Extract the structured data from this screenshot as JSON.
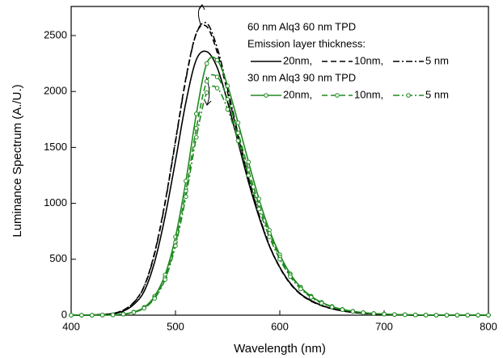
{
  "chart_data": {
    "type": "line",
    "xlabel": "Wavelength (nm)",
    "ylabel": "Luminance Spectrum (A./U.)",
    "annotations": [
      "60 nm Alq3 60 nm TPD",
      "Emission layer thickness:",
      "30 nm Alq3 90 nm TPD"
    ],
    "x": [
      400,
      410,
      420,
      430,
      440,
      450,
      460,
      470,
      480,
      490,
      500,
      510,
      520,
      530,
      540,
      550,
      560,
      570,
      580,
      590,
      600,
      610,
      620,
      630,
      640,
      650,
      660,
      670,
      680,
      690,
      700,
      710,
      720,
      730,
      740,
      750,
      760,
      770,
      780,
      790,
      800
    ],
    "xlim": [
      400,
      800
    ],
    "xticks": [
      400,
      500,
      600,
      700,
      800
    ],
    "ylim": [
      0,
      2760
    ],
    "yticks": [
      0,
      500,
      1000,
      1500,
      2000,
      2500
    ],
    "series": [
      {
        "name": "20nm,",
        "color": "#000000",
        "dash": "solid",
        "group": 0,
        "values": [
          0,
          0,
          2,
          5,
          12,
          36,
          95,
          214,
          476,
          881,
          1380,
          1904,
          2285,
          2356,
          2213,
          1904,
          1547,
          1190,
          881,
          619,
          428,
          286,
          190,
          131,
          88,
          60,
          40,
          26,
          17,
          12,
          7,
          5,
          2,
          0,
          0,
          0,
          0,
          0,
          0,
          0,
          0
        ]
      },
      {
        "name": "10nm,",
        "color": "#000000",
        "dash": "dashed",
        "group": 0,
        "values": [
          0,
          0,
          2,
          6,
          15,
          45,
          115,
          260,
          560,
          1010,
          1560,
          2120,
          2520,
          2580,
          2350,
          1990,
          1600,
          1220,
          890,
          620,
          425,
          280,
          185,
          125,
          85,
          57,
          38,
          25,
          16,
          11,
          7,
          4,
          2,
          0,
          0,
          0,
          0,
          0,
          0,
          0,
          0
        ]
      },
      {
        "name": "5 nm",
        "color": "#000000",
        "dash": "dashdot",
        "group": 0,
        "values": [
          0,
          0,
          2,
          6,
          15,
          44,
          112,
          255,
          550,
          1000,
          1550,
          2110,
          2520,
          2610,
          2390,
          2020,
          1620,
          1230,
          900,
          625,
          430,
          285,
          188,
          128,
          87,
          58,
          39,
          26,
          17,
          11,
          7,
          4,
          2,
          0,
          0,
          0,
          0,
          0,
          0,
          0,
          0
        ]
      },
      {
        "name": "20nm,",
        "color": "#1f8a1f",
        "dash": "solid",
        "marker": "circle",
        "group": 1,
        "values": [
          0,
          0,
          0,
          1,
          3,
          10,
          28,
          70,
          170,
          360,
          700,
          1200,
          1800,
          2250,
          2280,
          2050,
          1720,
          1370,
          1040,
          760,
          540,
          370,
          250,
          170,
          115,
          78,
          52,
          35,
          23,
          15,
          10,
          6,
          4,
          2,
          1,
          0,
          0,
          0,
          0,
          0,
          0
        ]
      },
      {
        "name": "10nm,",
        "color": "#1f8a1f",
        "dash": "dashed",
        "marker": "circle",
        "group": 1,
        "values": [
          0,
          0,
          0,
          1,
          3,
          9,
          26,
          65,
          158,
          335,
          650,
          1110,
          1670,
          2090,
          2130,
          1930,
          1630,
          1300,
          990,
          730,
          520,
          360,
          245,
          165,
          112,
          76,
          51,
          34,
          22,
          15,
          10,
          6,
          4,
          2,
          1,
          0,
          0,
          0,
          0,
          0,
          0
        ]
      },
      {
        "name": "5 nm",
        "color": "#1f8a1f",
        "dash": "dashdot",
        "marker": "circle",
        "group": 1,
        "values": [
          0,
          0,
          0,
          1,
          3,
          9,
          25,
          62,
          150,
          318,
          620,
          1060,
          1590,
          1990,
          2030,
          1840,
          1560,
          1250,
          950,
          700,
          500,
          345,
          235,
          160,
          108,
          73,
          49,
          33,
          22,
          14,
          9,
          6,
          4,
          2,
          1,
          0,
          0,
          0,
          0,
          0,
          0
        ]
      }
    ]
  }
}
